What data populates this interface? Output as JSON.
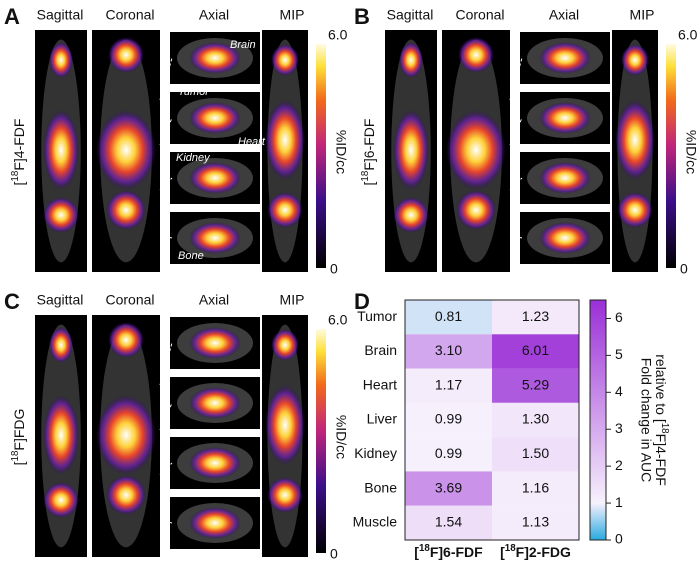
{
  "panels": [
    {
      "label": "A",
      "views": [
        "Sagittal",
        "Coronal",
        "Axial",
        "MIP"
      ],
      "tracer": {
        "open": "[",
        "isotope": "18",
        "rest": "F]4-FDF"
      },
      "colorbar": {
        "max": "6.0",
        "min": "0",
        "unit": "%ID/cc"
      },
      "annotations": [
        "Brain",
        "Tumor",
        "Heart",
        "Kidney",
        "Bone"
      ]
    },
    {
      "label": "B",
      "views": [
        "Sagittal",
        "Coronal",
        "Axial",
        "MIP"
      ],
      "tracer": {
        "open": "[",
        "isotope": "18",
        "rest": "F]6-FDF"
      },
      "colorbar": {
        "max": "6.0",
        "min": "0",
        "unit": "%ID/cc"
      }
    },
    {
      "label": "C",
      "views": [
        "Sagittal",
        "Coronal",
        "Axial",
        "MIP"
      ],
      "tracer": {
        "open": "[",
        "isotope": "18",
        "rest": "F]FDG"
      },
      "colorbar": {
        "max": "6.0",
        "min": "0",
        "unit": "%ID/cc"
      }
    }
  ],
  "chart_data": {
    "type": "heatmap",
    "label": "D",
    "rows": [
      "Tumor",
      "Brain",
      "Heart",
      "Liver",
      "Kidney",
      "Bone",
      "Muscle"
    ],
    "columns": [
      {
        "open": "[",
        "isotope": "18",
        "rest": "F]6-FDF"
      },
      {
        "open": "[",
        "isotope": "18",
        "rest": "F]2-FDG"
      }
    ],
    "values": [
      [
        0.81,
        1.23
      ],
      [
        3.1,
        6.01
      ],
      [
        1.17,
        5.29
      ],
      [
        0.99,
        1.3
      ],
      [
        0.99,
        1.5
      ],
      [
        3.69,
        1.16
      ],
      [
        1.54,
        1.13
      ]
    ],
    "value_labels": [
      [
        "0.81",
        "1.23"
      ],
      [
        "3.10",
        "6.01"
      ],
      [
        "1.17",
        "5.29"
      ],
      [
        "0.99",
        "1.30"
      ],
      [
        "0.99",
        "1.50"
      ],
      [
        "3.69",
        "1.16"
      ],
      [
        "1.54",
        "1.13"
      ]
    ],
    "zlim": [
      0,
      6.5
    ],
    "zticks": [
      0,
      1,
      2,
      3,
      4,
      5,
      6
    ],
    "colorbar_label": {
      "line1": "Fold change in AUC",
      "open": "relative to [",
      "isotope": "18",
      "rest": "F]4-FDF"
    }
  }
}
